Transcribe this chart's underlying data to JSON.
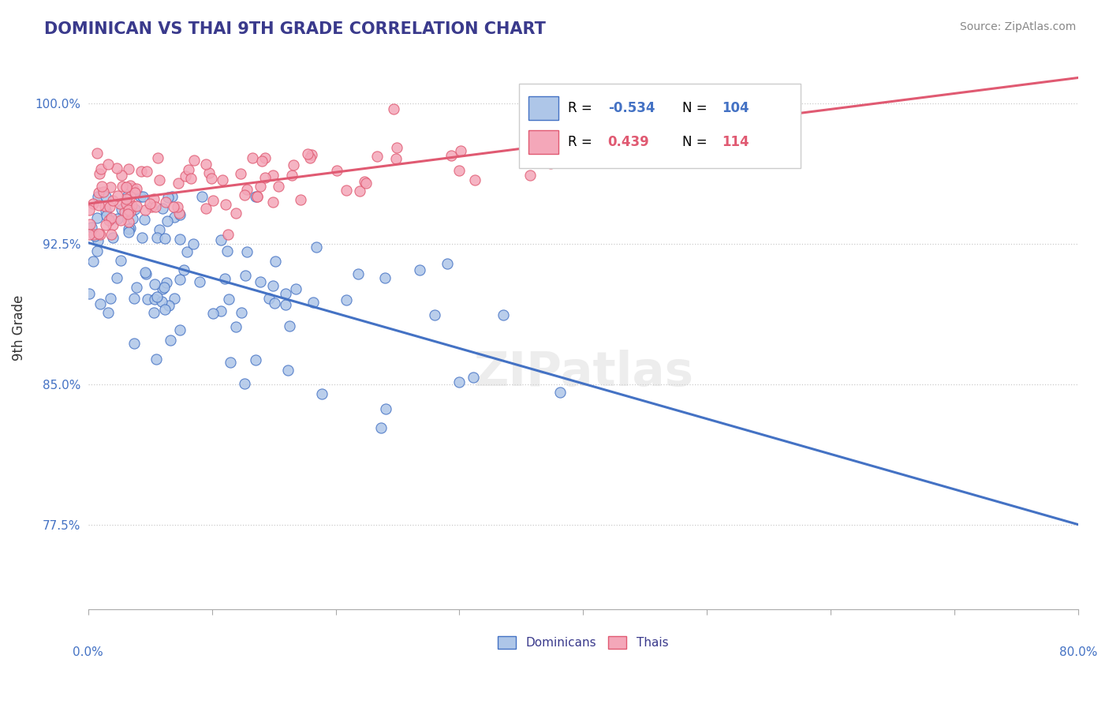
{
  "title": "DOMINICAN VS THAI 9TH GRADE CORRELATION CHART",
  "source": "Source: ZipAtlas.com",
  "ylabel": "9th Grade",
  "R_dominican": -0.534,
  "N_dominican": 104,
  "R_thai": 0.439,
  "N_thai": 114,
  "legend_label_dom": "Dominicans",
  "legend_label_thai": "Thais",
  "dominican_color": "#aec6e8",
  "thai_color": "#f4a7b9",
  "dominican_line_color": "#4472c4",
  "thai_line_color": "#e05a72",
  "xlim": [
    0.0,
    80.0
  ],
  "ylim": [
    73.0,
    103.0
  ],
  "ytick_positions": [
    77.5,
    85.0,
    92.5,
    100.0
  ],
  "dom_seed": 7,
  "thai_seed": 13,
  "watermark": "ZIPatlas"
}
